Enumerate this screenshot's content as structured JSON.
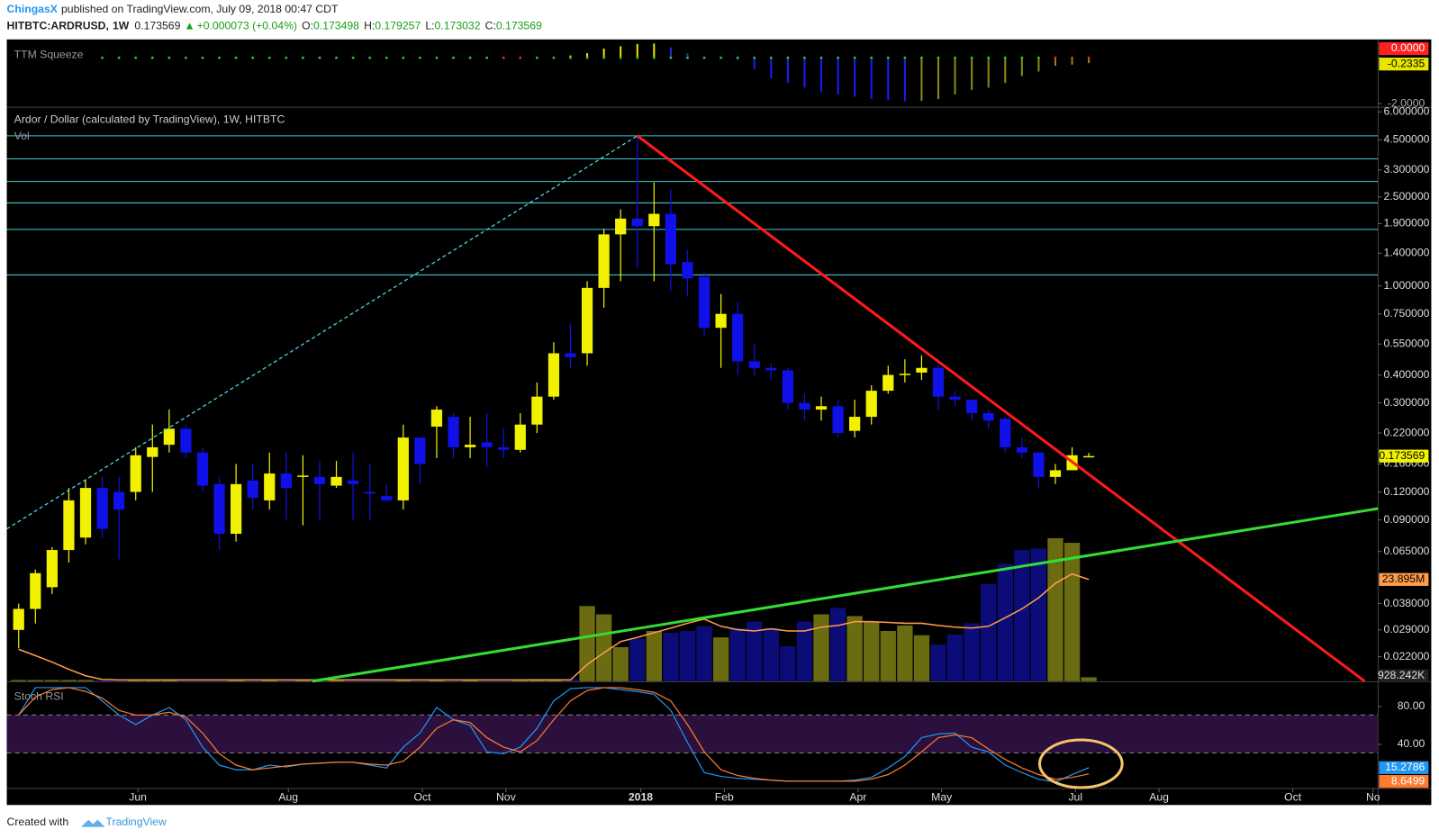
{
  "header": {
    "author": "ChingasX",
    "published": "published on TradingView.com, July 09, 2018 00:47 CDT",
    "symbol": "HITBTC:ARDRUSD,",
    "interval": "1W",
    "change": "+0.000073 (+0.04%)",
    "o_label": "O:",
    "h_label": "H:",
    "l_label": "L:",
    "c_label": "C:"
  },
  "chart_data": [
    {
      "type": "histogram",
      "title": "TTM Squeeze",
      "values": [
        null,
        null,
        null,
        null,
        null,
        null,
        null,
        null,
        null,
        null,
        null,
        null,
        null,
        null,
        null,
        null,
        null,
        null,
        null,
        null,
        null,
        null,
        null,
        null,
        null,
        null,
        null,
        null,
        null,
        null,
        null,
        null,
        null,
        0.1,
        0.2,
        0.4,
        0.5,
        0.6,
        0.62,
        0.45,
        0.2,
        0.05,
        -0.02,
        -0.1,
        -0.5,
        -0.9,
        -1.1,
        -1.3,
        -1.5,
        -1.6,
        -1.7,
        -1.8,
        -1.85,
        -1.9,
        -1.88,
        -1.8,
        -1.6,
        -1.4,
        -1.3,
        -1.1,
        -0.8,
        -0.6,
        -0.35,
        -0.3,
        -0.2335
      ],
      "squeeze": [
        null,
        null,
        null,
        null,
        null,
        false,
        false,
        false,
        false,
        false,
        false,
        false,
        false,
        false,
        false,
        false,
        false,
        false,
        false,
        false,
        false,
        false,
        false,
        false,
        false,
        false,
        false,
        false,
        false,
        true,
        true,
        false,
        false,
        false,
        false,
        false,
        false,
        false,
        false,
        false,
        false,
        false,
        false,
        false,
        false,
        false,
        false,
        false,
        false,
        false,
        false,
        false,
        false,
        false,
        false,
        false,
        false,
        false,
        false,
        false,
        false,
        false,
        true,
        true,
        true
      ],
      "pos_up_color": "#e6e600",
      "pos_down_color": "#2a2ad8",
      "neg_down_color": "#1a1aff",
      "neg_up_color": "#8a8a14",
      "squeeze_color": "#ff2020",
      "no_squeeze_color": "#22cc22",
      "ylim": [
        -2.16,
        0.8
      ],
      "yticks": [
        {
          "value": 0,
          "label": "0.0000"
        },
        {
          "value": -2,
          "label": "-2.0000"
        }
      ]
    },
    {
      "type": "candlestick",
      "title": "Ardor / Dollar (calculated by TradingView), 1W, HITBTC",
      "x": [
        0,
        1,
        2,
        3,
        4,
        5,
        6,
        7,
        8,
        9,
        10,
        11,
        12,
        13,
        14,
        15,
        16,
        17,
        18,
        19,
        20,
        21,
        22,
        23,
        24,
        25,
        26,
        27,
        28,
        29,
        30,
        31,
        32,
        33,
        34,
        35,
        36,
        37,
        38,
        39,
        40,
        41,
        42,
        43,
        44,
        45,
        46,
        47,
        48,
        49,
        50,
        51,
        52,
        53,
        54,
        55,
        56,
        57,
        58,
        59,
        60,
        61,
        62,
        63,
        64
      ],
      "open": [
        0.029,
        0.036,
        0.045,
        0.066,
        0.075,
        0.125,
        0.12,
        0.12,
        0.172,
        0.195,
        0.23,
        0.18,
        0.13,
        0.078,
        0.135,
        0.11,
        0.145,
        0.14,
        0.14,
        0.128,
        0.135,
        0.12,
        0.115,
        0.11,
        0.21,
        0.235,
        0.26,
        0.19,
        0.2,
        0.19,
        0.185,
        0.24,
        0.32,
        0.5,
        0.5,
        0.98,
        1.7,
        2.0,
        1.85,
        2.1,
        1.28,
        1.1,
        0.65,
        0.75,
        0.46,
        0.43,
        0.42,
        0.3,
        0.28,
        0.29,
        0.225,
        0.26,
        0.34,
        0.4,
        0.41,
        0.43,
        0.32,
        0.31,
        0.27,
        0.255,
        0.19,
        0.18,
        0.14,
        0.15,
        0.173498
      ],
      "high": [
        0.038,
        0.054,
        0.068,
        0.125,
        0.135,
        0.14,
        0.14,
        0.19,
        0.24,
        0.28,
        0.24,
        0.19,
        0.14,
        0.16,
        0.16,
        0.18,
        0.18,
        0.175,
        0.165,
        0.165,
        0.18,
        0.16,
        0.13,
        0.24,
        0.21,
        0.29,
        0.27,
        0.26,
        0.27,
        0.23,
        0.27,
        0.37,
        0.56,
        0.68,
        1.05,
        1.8,
        2.2,
        4.6,
        2.9,
        2.7,
        1.45,
        1.15,
        0.92,
        0.85,
        0.55,
        0.45,
        0.43,
        0.33,
        0.32,
        0.31,
        0.31,
        0.36,
        0.44,
        0.47,
        0.49,
        0.47,
        0.34,
        0.31,
        0.28,
        0.26,
        0.21,
        0.18,
        0.16,
        0.19,
        0.179257
      ],
      "low": [
        0.024,
        0.031,
        0.042,
        0.058,
        0.07,
        0.075,
        0.06,
        0.11,
        0.12,
        0.18,
        0.17,
        0.12,
        0.066,
        0.072,
        0.1,
        0.1,
        0.09,
        0.085,
        0.09,
        0.125,
        0.09,
        0.09,
        0.108,
        0.1,
        0.13,
        0.17,
        0.17,
        0.17,
        0.155,
        0.17,
        0.18,
        0.22,
        0.31,
        0.43,
        0.44,
        0.8,
        1.05,
        1.2,
        1.05,
        0.95,
        0.9,
        0.6,
        0.43,
        0.4,
        0.4,
        0.38,
        0.28,
        0.25,
        0.25,
        0.21,
        0.21,
        0.24,
        0.33,
        0.37,
        0.38,
        0.28,
        0.29,
        0.25,
        0.23,
        0.18,
        0.17,
        0.125,
        0.13,
        0.15,
        0.173032
      ],
      "close": [
        0.036,
        0.052,
        0.066,
        0.11,
        0.125,
        0.082,
        0.1,
        0.175,
        0.19,
        0.23,
        0.18,
        0.128,
        0.078,
        0.13,
        0.113,
        0.145,
        0.125,
        0.142,
        0.13,
        0.14,
        0.13,
        0.118,
        0.11,
        0.21,
        0.16,
        0.28,
        0.19,
        0.195,
        0.19,
        0.185,
        0.24,
        0.32,
        0.5,
        0.48,
        0.98,
        1.7,
        2.0,
        1.85,
        2.1,
        1.25,
        1.08,
        0.65,
        0.75,
        0.46,
        0.43,
        0.42,
        0.3,
        0.28,
        0.29,
        0.22,
        0.26,
        0.34,
        0.4,
        0.405,
        0.43,
        0.32,
        0.31,
        0.27,
        0.25,
        0.19,
        0.18,
        0.14,
        0.15,
        0.175,
        0.173569
      ],
      "up_color": "#f2f200",
      "down_color": "#1010e8",
      "log_scale": true,
      "ylim": [
        0.0171,
        6.29
      ],
      "yticks": [
        {
          "value": 6,
          "label": "6.000000"
        },
        {
          "value": 4.5,
          "label": "4.500000"
        },
        {
          "value": 3.3,
          "label": "3.300000"
        },
        {
          "value": 2.5,
          "label": "2.500000"
        },
        {
          "value": 1.9,
          "label": "1.900000"
        },
        {
          "value": 1.4,
          "label": "1.400000"
        },
        {
          "value": 1,
          "label": "1.000000"
        },
        {
          "value": 0.75,
          "label": "0.750000"
        },
        {
          "value": 0.55,
          "label": "0.550000"
        },
        {
          "value": 0.4,
          "label": "0.400000"
        },
        {
          "value": 0.3,
          "label": "0.300000"
        },
        {
          "value": 0.22,
          "label": "0.220000"
        },
        {
          "value": 0.16,
          "label": "0.160000"
        },
        {
          "value": 0.12,
          "label": "0.120000"
        },
        {
          "value": 0.09,
          "label": "0.090000"
        },
        {
          "value": 0.065,
          "label": "0.065000"
        },
        {
          "value": 0.038,
          "label": "0.038000"
        },
        {
          "value": 0.029,
          "label": "0.029000"
        },
        {
          "value": 0.022,
          "label": "0.022000"
        }
      ],
      "xlim": [
        -0.71,
        81.3
      ],
      "xticks": [
        {
          "value": 7.13,
          "label": "Jun"
        },
        {
          "value": 16.13,
          "label": "Aug"
        },
        {
          "value": 24.14,
          "label": "Oct"
        },
        {
          "value": 29.14,
          "label": "Nov"
        },
        {
          "value": 37.2,
          "label": "2018"
        },
        {
          "value": 42.2,
          "label": "Feb"
        },
        {
          "value": 50.2,
          "label": "Apr"
        },
        {
          "value": 55.2,
          "label": "May"
        },
        {
          "value": 63.2,
          "label": "Jul"
        },
        {
          "value": 68.2,
          "label": "Aug"
        },
        {
          "value": 76.2,
          "label": "Oct"
        },
        {
          "value": 81.0,
          "label": "No"
        }
      ],
      "levels": {
        "color": "#3cc9d4",
        "values": [
          4.69,
          3.7,
          2.93,
          2.35,
          1.79,
          1.12
        ]
      },
      "trend_lines": [
        {
          "color": "#4dd0e1",
          "dashed": true,
          "x": [
            -0.71,
            37
          ],
          "y": [
            0.082,
            4.69
          ]
        },
        {
          "color": "#ff1a1a",
          "x": [
            37,
            80.5
          ],
          "y": [
            4.69,
            0.0171
          ]
        },
        {
          "color": "#33dd33",
          "x": [
            17.56,
            81.3
          ],
          "y": [
            0.0171,
            0.1011
          ]
        }
      ],
      "volume": {
        "label": "Vol",
        "up_color": "#6b6b12",
        "down_color": "#0c0c78",
        "ylim": [
          0,
          134800000
        ],
        "values": [
          300000,
          300000,
          300000,
          300000,
          300000,
          300000,
          300000,
          300000,
          300000,
          300000,
          300000,
          300000,
          300000,
          300000,
          300000,
          300000,
          300000,
          300000,
          300000,
          300000,
          300000,
          300000,
          300000,
          300000,
          300000,
          300000,
          300000,
          300000,
          300000,
          300000,
          300000,
          500000,
          500000,
          500000,
          17650000,
          15700000,
          8000000,
          10000000,
          11800000,
          11400000,
          11800000,
          12900000,
          10300000,
          12500000,
          14000000,
          12500000,
          8200000,
          14000000,
          15700000,
          17200000,
          15300000,
          14000000,
          11800000,
          13100000,
          10800000,
          8600000,
          11000000,
          13600000,
          22800000,
          27600000,
          30800000,
          31200000,
          33600000,
          32500000,
          928242
        ],
        "value_labels": [
          null,
          null,
          null,
          null,
          null,
          null,
          null,
          null,
          null,
          null,
          null,
          null,
          null,
          null,
          null,
          null,
          null,
          null,
          null,
          null,
          null,
          null,
          null,
          null,
          null,
          null,
          null,
          null,
          null,
          null,
          null,
          null,
          null,
          null,
          null,
          null,
          null,
          null,
          null,
          null,
          null,
          null,
          null,
          null,
          null,
          null,
          null,
          null,
          null,
          null,
          null,
          null,
          null,
          null,
          null,
          null,
          null,
          null,
          null,
          null,
          null,
          null,
          null,
          null,
          "928.242K"
        ],
        "ma": {
          "color": "#ff9d4a",
          "values": [
            7500000,
            6000000,
            4500000,
            2800000,
            1300000,
            400000,
            300000,
            300000,
            300000,
            300000,
            300000,
            300000,
            300000,
            300000,
            300000,
            300000,
            300000,
            300000,
            300000,
            300000,
            300000,
            300000,
            300000,
            300000,
            300000,
            300000,
            300000,
            300000,
            300000,
            300000,
            300000,
            300000,
            300000,
            300000,
            3900000,
            6700000,
            9300000,
            10300000,
            11400000,
            12500000,
            13600000,
            14600000,
            12900000,
            12100000,
            11800000,
            12300000,
            11800000,
            11800000,
            12700000,
            13100000,
            14000000,
            14000000,
            13800000,
            13600000,
            13600000,
            13100000,
            12700000,
            12500000,
            12900000,
            14900000,
            17000000,
            19600000,
            23000000,
            25200000,
            23895000
          ],
          "value_labels": [
            null,
            null,
            null,
            null,
            null,
            null,
            null,
            null,
            null,
            null,
            null,
            null,
            null,
            null,
            null,
            null,
            null,
            null,
            null,
            null,
            null,
            null,
            null,
            null,
            null,
            null,
            null,
            null,
            null,
            null,
            null,
            null,
            null,
            null,
            null,
            null,
            null,
            null,
            null,
            null,
            null,
            null,
            null,
            null,
            null,
            null,
            null,
            null,
            null,
            null,
            null,
            null,
            null,
            null,
            null,
            null,
            null,
            null,
            null,
            null,
            null,
            null,
            null,
            null,
            "23.895M"
          ]
        }
      }
    },
    {
      "type": "line",
      "title": "Stoch RSI",
      "ylim": [
        -6.8,
        104.9
      ],
      "yticks": [
        {
          "value": 80,
          "label": "80.00"
        },
        {
          "value": 40,
          "label": "40.00"
        }
      ],
      "bands": [
        71,
        31
      ],
      "band_color": "#2b0f3c",
      "series": [
        {
          "color": "#2196f3",
          "values": [
            71,
            100,
            100,
            100,
            100,
            86,
            71,
            61,
            71,
            79,
            66,
            37,
            18,
            13,
            13,
            18,
            16,
            19,
            20,
            21,
            21,
            18,
            15,
            37,
            52,
            79,
            66,
            60,
            32,
            30,
            37,
            57,
            86,
            99,
            100,
            100,
            98,
            96,
            93,
            76,
            42,
            10,
            6,
            4,
            3,
            2,
            1,
            1,
            1,
            1,
            2,
            5,
            15,
            27,
            47,
            51,
            52,
            37,
            32,
            18,
            10,
            3,
            0,
            8,
            15.2786
          ]
        },
        {
          "color": "#ff7a2e",
          "values": [
            71,
            90,
            98,
            100,
            96,
            89,
            76,
            71,
            71,
            74,
            69,
            52,
            30,
            18,
            13,
            15,
            17,
            19,
            20,
            21,
            21,
            19,
            18,
            22,
            37,
            57,
            66,
            63,
            47,
            37,
            32,
            44,
            66,
            86,
            97,
            100,
            100,
            98,
            95,
            86,
            61,
            32,
            13,
            7,
            4,
            2,
            1,
            1,
            1,
            1,
            1,
            3,
            8,
            18,
            32,
            47,
            50,
            47,
            35,
            24,
            15,
            8,
            3,
            5,
            8.6499
          ]
        }
      ]
    }
  ],
  "footer": {
    "created_with": "Created with",
    "brand": "TradingView"
  }
}
